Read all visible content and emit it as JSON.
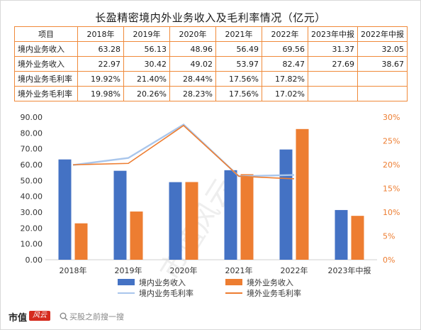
{
  "chart_data": {
    "type": "bar",
    "title": "长盈精密境内外业务收入及毛利率情况（亿元）",
    "table": {
      "header": [
        "项目",
        "2018年",
        "2019年",
        "2020年",
        "2021年",
        "2022年",
        "2023年中报",
        "2022年中报"
      ],
      "rows": [
        [
          "境内业务收入",
          "63.28",
          "56.13",
          "48.96",
          "56.49",
          "69.56",
          "31.37",
          "32.05"
        ],
        [
          "境外业务收入",
          "22.97",
          "30.42",
          "49.02",
          "53.97",
          "82.47",
          "27.69",
          "38.67"
        ],
        [
          "境内业务毛利率",
          "19.92%",
          "21.40%",
          "28.44%",
          "17.56%",
          "17.82%",
          "",
          ""
        ],
        [
          "境外业务毛利率",
          "19.98%",
          "20.26%",
          "28.23%",
          "17.56%",
          "17.02%",
          "",
          ""
        ]
      ]
    },
    "categories": [
      "2018年",
      "2019年",
      "2020年",
      "2021年",
      "2022年",
      "2023年中报"
    ],
    "series": [
      {
        "name": "境内业务收入",
        "kind": "bar",
        "axis": "left",
        "color": "#4472c4",
        "values": [
          63.28,
          56.13,
          48.96,
          56.49,
          69.56,
          31.37
        ]
      },
      {
        "name": "境外业务收入",
        "kind": "bar",
        "axis": "left",
        "color": "#ed7d31",
        "values": [
          22.97,
          30.42,
          49.02,
          53.97,
          82.47,
          27.69
        ]
      },
      {
        "name": "境内业务毛利率",
        "kind": "line",
        "axis": "right",
        "color": "#a9c6ec",
        "values": [
          19.92,
          21.4,
          28.44,
          17.56,
          17.82,
          null
        ]
      },
      {
        "name": "境外业务毛利率",
        "kind": "line",
        "axis": "right",
        "color": "#ed7d31",
        "values": [
          19.98,
          20.26,
          28.23,
          17.56,
          17.02,
          null
        ]
      }
    ],
    "y_left": {
      "min": 0,
      "max": 90,
      "step": 10,
      "ticks": [
        "0.00",
        "10.00",
        "20.00",
        "30.00",
        "40.00",
        "50.00",
        "60.00",
        "70.00",
        "80.00",
        "90.00"
      ],
      "label_color": "#333333"
    },
    "y_right": {
      "min": 0,
      "max": 30,
      "step": 5,
      "ticks": [
        "0%",
        "5%",
        "10%",
        "15%",
        "20%",
        "25%",
        "30%"
      ],
      "label_color": "#ed7d31"
    },
    "legend_position": "bottom",
    "grid": false
  },
  "footer": {
    "brand": "市值",
    "brand_mark": "风云",
    "search_placeholder": "买股之前搜一搜"
  }
}
